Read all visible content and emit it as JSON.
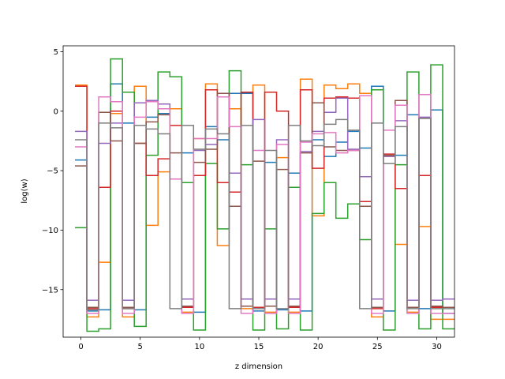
{
  "chart_data": {
    "type": "line",
    "drawstyle": "steps",
    "xlabel": "z dimension",
    "ylabel": "log(w)",
    "xlim": [
      -1.5,
      31.5
    ],
    "ylim": [
      -19,
      5.5
    ],
    "x_ticks": [
      0,
      5,
      10,
      15,
      20,
      25,
      30
    ],
    "y_ticks": [
      5,
      0,
      -5,
      -10,
      -15
    ],
    "y_tick_labels": [
      "5",
      "0",
      "−5",
      "−10",
      "−15"
    ],
    "x": [
      0,
      1,
      2,
      3,
      4,
      5,
      6,
      7,
      8,
      9,
      10,
      11,
      12,
      13,
      14,
      15,
      16,
      17,
      18,
      19,
      20,
      21,
      22,
      23,
      24,
      25,
      26,
      27,
      28,
      29,
      30,
      31
    ],
    "series": [
      {
        "color": "#1f77b4",
        "values": [
          -4.1,
          -16.8,
          -16.7,
          2.3,
          -1.0,
          -16.7,
          -0.5,
          -0.2,
          0.2,
          -3.5,
          -16.9,
          -1.3,
          -2.4,
          1.5,
          1.5,
          -16.8,
          -4.3,
          -16.7,
          -5.2,
          -16.8,
          -2.4,
          -3.8,
          -2.6,
          -1.7,
          -3.1,
          2.1,
          -16.8,
          -3.7,
          -0.3,
          -16.6,
          0.1,
          -17.0
        ]
      },
      {
        "color": "#ff7f0e",
        "values": [
          2.2,
          -17.3,
          -12.7,
          -0.2,
          -17.3,
          2.1,
          -9.6,
          -5.1,
          0.2,
          -16.9,
          -2.3,
          2.3,
          -11.3,
          0.2,
          -16.6,
          2.2,
          -16.9,
          -3.9,
          -16.9,
          2.7,
          -8.8,
          2.2,
          1.9,
          2.3,
          1.5,
          -17.3,
          -3.8,
          -11.2,
          -16.9,
          -9.7,
          -17.5,
          -17.5
        ]
      },
      {
        "color": "#2ca02c",
        "values": [
          -9.8,
          -18.5,
          -18.3,
          4.4,
          1.6,
          -18.1,
          -3.7,
          3.3,
          2.9,
          -6.0,
          -18.4,
          -4.4,
          -9.9,
          3.4,
          -4.5,
          -18.4,
          -9.9,
          -18.3,
          -6.4,
          -18.4,
          -8.6,
          -6.0,
          -9.0,
          -7.8,
          -10.8,
          1.8,
          -18.4,
          -4.5,
          3.3,
          -18.3,
          3.9,
          -18.3
        ]
      },
      {
        "color": "#d62728",
        "values": [
          2.1,
          -16.6,
          -6.4,
          0.0,
          -16.6,
          -2.7,
          -5.4,
          -4.0,
          -1.2,
          -16.5,
          -5.4,
          1.8,
          -6.0,
          -6.8,
          1.6,
          -16.5,
          1.6,
          0.0,
          -16.5,
          1.8,
          -4.8,
          1.1,
          1.2,
          1.1,
          -7.6,
          -16.6,
          -3.6,
          -6.5,
          -16.5,
          -5.4,
          -16.5,
          -16.5
        ]
      },
      {
        "color": "#9467bd",
        "values": [
          -1.7,
          -15.9,
          -2.7,
          -1.0,
          -15.9,
          0.7,
          0.9,
          0.6,
          -5.7,
          -15.8,
          -3.3,
          -2.8,
          1.2,
          -5.2,
          -15.8,
          -0.7,
          -15.8,
          -2.4,
          -15.8,
          -3.4,
          -1.7,
          -0.1,
          1.1,
          -3.2,
          -5.5,
          -15.8,
          -3.8,
          -0.8,
          -15.9,
          -0.5,
          -15.9,
          -15.8
        ]
      },
      {
        "color": "#8c564b",
        "values": [
          -4.6,
          -16.5,
          -0.1,
          -2.5,
          -16.5,
          -2.7,
          -0.9,
          -0.3,
          -3.5,
          -16.4,
          -4.3,
          -3.2,
          1.5,
          -8.0,
          -16.4,
          -4.2,
          -16.4,
          -4.9,
          -16.4,
          -3.5,
          0.7,
          -3.0,
          -3.3,
          -3.3,
          -8.0,
          -16.5,
          -3.7,
          0.9,
          -16.5,
          -0.6,
          -16.4,
          -16.5
        ]
      },
      {
        "color": "#e377c2",
        "values": [
          -3.0,
          -17.0,
          1.2,
          0.8,
          -17.0,
          -0.5,
          0.8,
          0.2,
          -5.7,
          -17.0,
          -2.3,
          -2.3,
          1.2,
          -1.3,
          -17.0,
          -3.3,
          -17.0,
          -2.8,
          -17.0,
          -2.6,
          -1.9,
          -1.8,
          -3.5,
          -3.3,
          1.3,
          -17.0,
          -1.6,
          0.5,
          -17.0,
          1.4,
          -17.0,
          -17.0
        ]
      },
      {
        "color": "#7f7f7f",
        "values": [
          -2.4,
          -16.7,
          -1.0,
          -1.4,
          -16.6,
          -1.2,
          -1.5,
          -1.9,
          -16.6,
          -1.2,
          -3.2,
          -1.5,
          -1.9,
          -16.6,
          -1.2,
          -16.6,
          -3.3,
          -16.6,
          -1.2,
          -2.5,
          -2.9,
          -1.1,
          -0.7,
          -1.6,
          -16.6,
          -1.0,
          -4.4,
          -1.3,
          -16.6,
          -0.6,
          -16.6,
          -16.6
        ]
      }
    ]
  }
}
